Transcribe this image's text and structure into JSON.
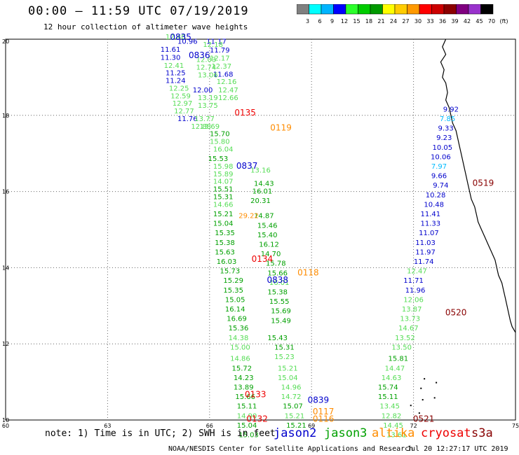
{
  "header": {
    "title": "00:00 — 11:59 UTC 07/19/2019",
    "subtitle": "12 hour collection of altimeter wave heights"
  },
  "colorbar": {
    "colors": [
      "#808080",
      "#00ffff",
      "#00b4ff",
      "#0000ff",
      "#2bff2b",
      "#00cc00",
      "#009900",
      "#ffff00",
      "#ffcc00",
      "#ff9900",
      "#ff0000",
      "#cc0000",
      "#8b0000",
      "#800080",
      "#9932cc",
      "#000000"
    ],
    "labels": [
      "3",
      "6",
      "9",
      "12",
      "15",
      "18",
      "21",
      "24",
      "27",
      "30",
      "33",
      "36",
      "39",
      "42",
      "45",
      "70",
      "(ft)"
    ]
  },
  "axes": {
    "x_ticks": [
      "60",
      "63",
      "66",
      "69",
      "72",
      "75"
    ],
    "y_ticks": [
      "20",
      "18",
      "16",
      "14",
      "12",
      "10"
    ]
  },
  "colors": {
    "jason2": "#0000cc",
    "jason3": "#00a000",
    "altika": "#ff8c00",
    "cryosat": "#ee0000",
    "s3a": "#880000",
    "light_green": "#55dd55",
    "cyan": "#00bbff"
  },
  "tracks": [
    {
      "sat": "jason2",
      "points": [
        {
          "lon": 65.35,
          "lat": 19.88,
          "v": "10.96",
          "c": "jason2"
        },
        {
          "lon": 64.85,
          "lat": 19.67,
          "v": "11.61",
          "c": "jason2"
        },
        {
          "lon": 64.85,
          "lat": 19.46,
          "v": "11.30",
          "c": "jason2"
        },
        {
          "lon": 64.95,
          "lat": 19.25,
          "v": "12.41",
          "c": "light_green"
        },
        {
          "lon": 65.0,
          "lat": 19.05,
          "v": "11.25",
          "c": "jason2"
        },
        {
          "lon": 65.0,
          "lat": 18.85,
          "v": "11.24",
          "c": "jason2"
        },
        {
          "lon": 65.1,
          "lat": 18.65,
          "v": "12.25",
          "c": "light_green"
        },
        {
          "lon": 65.15,
          "lat": 18.45,
          "v": "12.59",
          "c": "light_green"
        },
        {
          "lon": 65.2,
          "lat": 18.25,
          "v": "12.97",
          "c": "light_green"
        },
        {
          "lon": 65.25,
          "lat": 18.05,
          "v": "12.77",
          "c": "light_green"
        },
        {
          "lon": 65.35,
          "lat": 17.85,
          "v": "11.76",
          "c": "jason2"
        },
        {
          "lon": 66.2,
          "lat": 19.88,
          "v": "11.17",
          "c": "jason2"
        },
        {
          "lon": 66.3,
          "lat": 19.65,
          "v": "11.79",
          "c": "jason2"
        },
        {
          "lon": 66.3,
          "lat": 19.44,
          "v": "12.17",
          "c": "light_green"
        },
        {
          "lon": 66.35,
          "lat": 19.23,
          "v": "12.37",
          "c": "light_green"
        },
        {
          "lon": 66.4,
          "lat": 19.02,
          "v": "11.68",
          "c": "jason2"
        },
        {
          "lon": 66.5,
          "lat": 18.82,
          "v": "12.16",
          "c": "light_green"
        },
        {
          "lon": 66.55,
          "lat": 18.6,
          "v": "12.47",
          "c": "light_green"
        },
        {
          "lon": 66.55,
          "lat": 18.4,
          "v": "12.66",
          "c": "light_green"
        }
      ]
    },
    {
      "sat": "jason3",
      "points": [
        {
          "lon": 65.0,
          "lat": 20.0,
          "v": "12.40",
          "c": "light_green"
        },
        {
          "lon": 66.1,
          "lat": 19.8,
          "v": "12.18",
          "c": "light_green"
        },
        {
          "lon": 65.9,
          "lat": 19.4,
          "v": "12.03",
          "c": "light_green"
        },
        {
          "lon": 65.9,
          "lat": 19.2,
          "v": "12.74",
          "c": "light_green"
        },
        {
          "lon": 65.95,
          "lat": 19.0,
          "v": "13.06",
          "c": "light_green"
        },
        {
          "lon": 65.8,
          "lat": 18.6,
          "v": "12.00",
          "c": "jason2"
        },
        {
          "lon": 65.95,
          "lat": 18.4,
          "v": "13.19",
          "c": "light_green"
        },
        {
          "lon": 65.95,
          "lat": 18.2,
          "v": "13.75",
          "c": "light_green"
        },
        {
          "lon": 65.85,
          "lat": 17.85,
          "v": "13.77",
          "c": "light_green"
        },
        {
          "lon": 65.75,
          "lat": 17.65,
          "v": "12.88",
          "c": "light_green"
        },
        {
          "lon": 66.0,
          "lat": 17.65,
          "v": "13.69",
          "c": "light_green"
        },
        {
          "lon": 66.3,
          "lat": 17.45,
          "v": "15.70",
          "c": "jason3"
        },
        {
          "lon": 66.3,
          "lat": 17.25,
          "v": "15.80",
          "c": "light_green"
        },
        {
          "lon": 66.4,
          "lat": 17.05,
          "v": "16.04",
          "c": "light_green"
        },
        {
          "lon": 66.25,
          "lat": 16.8,
          "v": "15.53",
          "c": "jason3"
        },
        {
          "lon": 66.4,
          "lat": 16.6,
          "v": "15.98",
          "c": "light_green"
        },
        {
          "lon": 66.4,
          "lat": 16.4,
          "v": "15.89",
          "c": "light_green"
        },
        {
          "lon": 66.4,
          "lat": 16.2,
          "v": "14.07",
          "c": "light_green"
        },
        {
          "lon": 66.4,
          "lat": 16.0,
          "v": "15.51",
          "c": "jason3"
        },
        {
          "lon": 66.4,
          "lat": 15.8,
          "v": "15.31",
          "c": "jason3"
        },
        {
          "lon": 66.4,
          "lat": 15.6,
          "v": "14.66",
          "c": "light_green"
        },
        {
          "lon": 66.4,
          "lat": 15.35,
          "v": "15.21",
          "c": "jason3"
        },
        {
          "lon": 66.4,
          "lat": 15.1,
          "v": "15.04",
          "c": "jason3"
        },
        {
          "lon": 66.45,
          "lat": 14.85,
          "v": "15.35",
          "c": "jason3"
        },
        {
          "lon": 66.45,
          "lat": 14.6,
          "v": "15.38",
          "c": "jason3"
        },
        {
          "lon": 66.45,
          "lat": 14.35,
          "v": "15.63",
          "c": "jason3"
        },
        {
          "lon": 66.5,
          "lat": 14.1,
          "v": "16.03",
          "c": "jason3"
        },
        {
          "lon": 66.6,
          "lat": 13.85,
          "v": "15.73",
          "c": "jason3"
        },
        {
          "lon": 66.7,
          "lat": 13.6,
          "v": "15.29",
          "c": "jason3"
        },
        {
          "lon": 66.7,
          "lat": 13.35,
          "v": "15.35",
          "c": "jason3"
        },
        {
          "lon": 66.75,
          "lat": 13.1,
          "v": "15.05",
          "c": "jason3"
        },
        {
          "lon": 66.75,
          "lat": 12.85,
          "v": "16.14",
          "c": "jason3"
        },
        {
          "lon": 66.8,
          "lat": 12.6,
          "v": "16.69",
          "c": "jason3"
        },
        {
          "lon": 66.85,
          "lat": 12.35,
          "v": "15.36",
          "c": "jason3"
        },
        {
          "lon": 66.85,
          "lat": 12.1,
          "v": "14.38",
          "c": "light_green"
        },
        {
          "lon": 66.9,
          "lat": 11.85,
          "v": "15.00",
          "c": "light_green"
        },
        {
          "lon": 66.9,
          "lat": 11.55,
          "v": "14.86",
          "c": "light_green"
        },
        {
          "lon": 66.95,
          "lat": 11.3,
          "v": "15.72",
          "c": "jason3"
        },
        {
          "lon": 67.0,
          "lat": 11.05,
          "v": "14.23",
          "c": "jason3"
        },
        {
          "lon": 67.0,
          "lat": 10.8,
          "v": "13.89",
          "c": "jason3"
        },
        {
          "lon": 67.05,
          "lat": 10.55,
          "v": "15.66",
          "c": "jason3"
        },
        {
          "lon": 67.1,
          "lat": 10.3,
          "v": "15.11",
          "c": "jason3"
        },
        {
          "lon": 67.1,
          "lat": 10.05,
          "v": "14.90",
          "c": "light_green"
        },
        {
          "lon": 67.1,
          "lat": 9.8,
          "v": "15.04",
          "c": "jason3"
        },
        {
          "lon": 67.15,
          "lat": 9.55,
          "v": "15.03",
          "c": "jason3"
        }
      ]
    },
    {
      "sat": "jason3b",
      "points": [
        {
          "lon": 67.5,
          "lat": 16.5,
          "v": "13.16",
          "c": "light_green"
        },
        {
          "lon": 67.6,
          "lat": 16.15,
          "v": "14.43",
          "c": "jason3"
        },
        {
          "lon": 67.55,
          "lat": 15.95,
          "v": "16.01",
          "c": "jason3"
        },
        {
          "lon": 67.5,
          "lat": 15.7,
          "v": "20.31",
          "c": "jason3"
        },
        {
          "lon": 67.6,
          "lat": 15.3,
          "v": "14.87",
          "c": "jason3"
        },
        {
          "lon": 67.7,
          "lat": 15.05,
          "v": "15.46",
          "c": "jason3"
        },
        {
          "lon": 67.7,
          "lat": 14.8,
          "v": "15.40",
          "c": "jason3"
        },
        {
          "lon": 67.75,
          "lat": 14.55,
          "v": "16.12",
          "c": "jason3"
        },
        {
          "lon": 67.8,
          "lat": 14.3,
          "v": "14.70",
          "c": "jason3"
        },
        {
          "lon": 67.95,
          "lat": 14.05,
          "v": "15.78",
          "c": "jason3"
        },
        {
          "lon": 68.0,
          "lat": 13.8,
          "v": "15.66",
          "c": "jason3"
        },
        {
          "lon": 68.05,
          "lat": 13.55,
          "v": "16.01",
          "c": "light_green"
        },
        {
          "lon": 68.0,
          "lat": 13.3,
          "v": "15.38",
          "c": "jason3"
        },
        {
          "lon": 68.05,
          "lat": 13.05,
          "v": "15.55",
          "c": "jason3"
        },
        {
          "lon": 68.1,
          "lat": 12.8,
          "v": "15.69",
          "c": "jason3"
        },
        {
          "lon": 68.1,
          "lat": 12.55,
          "v": "15.49",
          "c": "jason3"
        },
        {
          "lon": 68.0,
          "lat": 12.1,
          "v": "15.43",
          "c": "jason3"
        },
        {
          "lon": 68.2,
          "lat": 11.85,
          "v": "15.31",
          "c": "jason3"
        },
        {
          "lon": 68.2,
          "lat": 11.6,
          "v": "15.23",
          "c": "light_green"
        },
        {
          "lon": 68.3,
          "lat": 11.3,
          "v": "15.21",
          "c": "light_green"
        },
        {
          "lon": 68.3,
          "lat": 11.05,
          "v": "15.04",
          "c": "light_green"
        },
        {
          "lon": 68.4,
          "lat": 10.8,
          "v": "14.96",
          "c": "light_green"
        },
        {
          "lon": 68.4,
          "lat": 10.55,
          "v": "14.72",
          "c": "light_green"
        },
        {
          "lon": 68.45,
          "lat": 10.3,
          "v": "15.07",
          "c": "jason3"
        },
        {
          "lon": 68.5,
          "lat": 10.05,
          "v": "15.21",
          "c": "light_green"
        },
        {
          "lon": 68.55,
          "lat": 9.8,
          "v": "15.21",
          "c": "jason3"
        }
      ]
    },
    {
      "sat": "altika",
      "points": [
        {
          "lon": 67.15,
          "lat": 15.3,
          "v": "29.22",
          "c": "altika"
        }
      ]
    },
    {
      "sat": "jason3c",
      "points": [
        {
          "lon": 71.5,
          "lat": 9.55,
          "v": "13.61",
          "c": "light_green"
        },
        {
          "lon": 71.4,
          "lat": 9.8,
          "v": "14.45",
          "c": "light_green"
        },
        {
          "lon": 71.35,
          "lat": 10.05,
          "v": "12.82",
          "c": "light_green"
        },
        {
          "lon": 71.3,
          "lat": 10.3,
          "v": "13.45",
          "c": "light_green"
        },
        {
          "lon": 71.25,
          "lat": 10.55,
          "v": "15.11",
          "c": "jason3"
        },
        {
          "lon": 71.25,
          "lat": 10.8,
          "v": "15.74",
          "c": "jason3"
        },
        {
          "lon": 71.35,
          "lat": 11.05,
          "v": "14.63",
          "c": "light_green"
        },
        {
          "lon": 71.45,
          "lat": 11.3,
          "v": "14.47",
          "c": "light_green"
        },
        {
          "lon": 71.55,
          "lat": 11.55,
          "v": "15.81",
          "c": "jason3"
        },
        {
          "lon": 71.65,
          "lat": 11.85,
          "v": "13.50",
          "c": "light_green"
        },
        {
          "lon": 71.75,
          "lat": 12.1,
          "v": "13.52",
          "c": "light_green"
        },
        {
          "lon": 71.85,
          "lat": 12.35,
          "v": "14.67",
          "c": "light_green"
        },
        {
          "lon": 71.9,
          "lat": 12.6,
          "v": "13.73",
          "c": "light_green"
        },
        {
          "lon": 71.95,
          "lat": 12.85,
          "v": "13.87",
          "c": "light_green"
        },
        {
          "lon": 72.0,
          "lat": 13.1,
          "v": "12.06",
          "c": "light_green"
        },
        {
          "lon": 72.05,
          "lat": 13.35,
          "v": "11.96",
          "c": "jason2"
        },
        {
          "lon": 72.0,
          "lat": 13.6,
          "v": "11.71",
          "c": "jason2"
        },
        {
          "lon": 72.1,
          "lat": 13.85,
          "v": "12.47",
          "c": "light_green"
        },
        {
          "lon": 72.3,
          "lat": 14.1,
          "v": "11.74",
          "c": "jason2"
        },
        {
          "lon": 72.35,
          "lat": 14.35,
          "v": "11.97",
          "c": "jason2"
        },
        {
          "lon": 72.35,
          "lat": 14.6,
          "v": "11.03",
          "c": "jason2"
        },
        {
          "lon": 72.45,
          "lat": 14.85,
          "v": "11.07",
          "c": "jason2"
        },
        {
          "lon": 72.5,
          "lat": 15.1,
          "v": "11.33",
          "c": "jason2"
        },
        {
          "lon": 72.5,
          "lat": 15.35,
          "v": "11.41",
          "c": "jason2"
        },
        {
          "lon": 72.6,
          "lat": 15.6,
          "v": "10.48",
          "c": "jason2"
        },
        {
          "lon": 72.65,
          "lat": 15.85,
          "v": "10.28",
          "c": "jason2"
        },
        {
          "lon": 72.8,
          "lat": 16.1,
          "v": "9.74",
          "c": "jason2"
        },
        {
          "lon": 72.75,
          "lat": 16.35,
          "v": "9.66",
          "c": "jason2"
        },
        {
          "lon": 72.75,
          "lat": 16.6,
          "v": "7.97",
          "c": "cyan"
        },
        {
          "lon": 72.8,
          "lat": 16.85,
          "v": "10.06",
          "c": "jason2"
        },
        {
          "lon": 72.85,
          "lat": 17.1,
          "v": "10.05",
          "c": "jason2"
        },
        {
          "lon": 72.9,
          "lat": 17.35,
          "v": "9.23",
          "c": "jason2"
        },
        {
          "lon": 72.95,
          "lat": 17.6,
          "v": "9.33",
          "c": "jason2"
        },
        {
          "lon": 73.0,
          "lat": 17.85,
          "v": "7.85",
          "c": "cyan"
        },
        {
          "lon": 73.1,
          "lat": 18.1,
          "v": "9.92",
          "c": "jason2"
        }
      ]
    }
  ],
  "pass_labels": [
    {
      "text": "0835",
      "lon": 65.15,
      "lat": 19.98,
      "c": "jason2"
    },
    {
      "text": "0836",
      "lon": 65.7,
      "lat": 19.5,
      "c": "jason2"
    },
    {
      "text": "0135",
      "lon": 67.05,
      "lat": 18.0,
      "c": "cryosat"
    },
    {
      "text": "0119",
      "lon": 68.1,
      "lat": 17.6,
      "c": "altika"
    },
    {
      "text": "0837",
      "lon": 67.1,
      "lat": 16.6,
      "c": "jason2"
    },
    {
      "text": "0134",
      "lon": 67.55,
      "lat": 14.15,
      "c": "cryosat"
    },
    {
      "text": "0118",
      "lon": 68.9,
      "lat": 13.8,
      "c": "altika"
    },
    {
      "text": "0838",
      "lon": 68.0,
      "lat": 13.6,
      "c": "jason2"
    },
    {
      "text": "0520",
      "lon": 73.25,
      "lat": 12.75,
      "c": "s3a"
    },
    {
      "text": "0519",
      "lon": 74.05,
      "lat": 16.15,
      "c": "s3a"
    },
    {
      "text": "0133",
      "lon": 67.35,
      "lat": 10.6,
      "c": "cryosat"
    },
    {
      "text": "0839",
      "lon": 69.2,
      "lat": 10.45,
      "c": "jason2"
    },
    {
      "text": "0117",
      "lon": 69.35,
      "lat": 10.15,
      "c": "altika"
    },
    {
      "text": "0132",
      "lon": 67.4,
      "lat": 9.95,
      "c": "cryosat"
    },
    {
      "text": "0116",
      "lon": 69.35,
      "lat": 9.95,
      "c": "altika"
    },
    {
      "text": "0521",
      "lon": 72.3,
      "lat": 9.95,
      "c": "s3a"
    }
  ],
  "note": "note: 1) Time is in UTC; 2) SWH is in feet",
  "legend": [
    {
      "label": "jason2",
      "c": "jason2",
      "x": 390
    },
    {
      "label": "jason3",
      "c": "jason3",
      "x": 462
    },
    {
      "label": "altika",
      "c": "altika",
      "x": 530
    },
    {
      "label": "cryosat",
      "c": "cryosat",
      "x": 600
    },
    {
      "label": "s3a",
      "c": "s3a",
      "x": 672
    }
  ],
  "footer": {
    "credit": "NOAA/NESDIS Center for Satellite Applications and Research",
    "time": "Jul 20 12:27:17 UTC 2019"
  }
}
